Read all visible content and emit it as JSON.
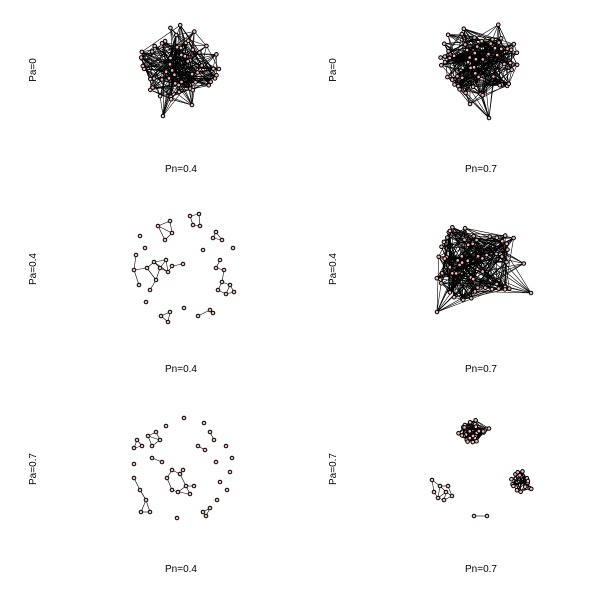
{
  "figure": {
    "description_type": "network-grid",
    "node_fill": "#f2b8b8",
    "edge_color": "#000000",
    "panels": [
      {
        "row": 0,
        "col": 0,
        "row_label": "Pa=0",
        "col_label": "Pn=0.4",
        "density": "dense"
      },
      {
        "row": 0,
        "col": 1,
        "row_label": "Pa=0",
        "col_label": "Pn=0.7",
        "density": "dense"
      },
      {
        "row": 1,
        "col": 0,
        "row_label": "Pa=0.4",
        "col_label": "Pn=0.4",
        "density": "sparse"
      },
      {
        "row": 1,
        "col": 1,
        "row_label": "Pa=0.4",
        "col_label": "Pn=0.7",
        "density": "dense"
      },
      {
        "row": 2,
        "col": 0,
        "row_label": "Pa=0.7",
        "col_label": "Pn=0.4",
        "density": "sparse"
      },
      {
        "row": 2,
        "col": 1,
        "row_label": "Pa=0.7",
        "col_label": "Pn=0.7",
        "density": "clusters"
      }
    ]
  }
}
